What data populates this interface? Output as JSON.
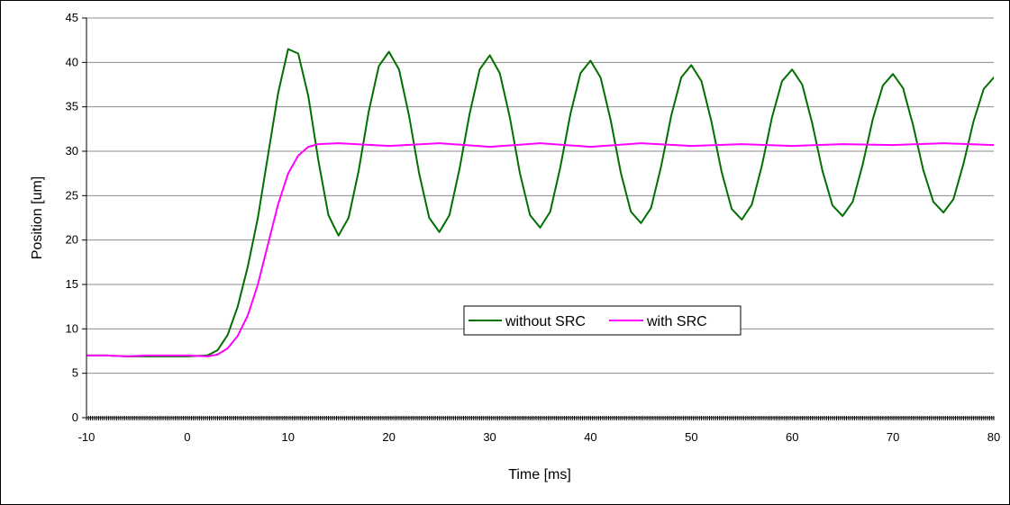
{
  "chart_data": {
    "type": "line",
    "xlabel": "Time [ms]",
    "ylabel": "Position [um]",
    "xlim": [
      -10,
      80
    ],
    "ylim": [
      0,
      45
    ],
    "xticks": [
      -10,
      0,
      10,
      20,
      30,
      40,
      50,
      60,
      70,
      80
    ],
    "yticks": [
      0,
      5,
      10,
      15,
      20,
      25,
      30,
      35,
      40,
      45
    ],
    "grid": "horizontal",
    "legend_position": "center-right",
    "series": [
      {
        "name": "without SRC",
        "color": "#007000",
        "points": [
          [
            -10,
            7.0
          ],
          [
            -8,
            7.0
          ],
          [
            -6,
            6.9
          ],
          [
            -4,
            6.9
          ],
          [
            -2,
            6.9
          ],
          [
            0,
            6.9
          ],
          [
            2,
            7.0
          ],
          [
            3,
            7.6
          ],
          [
            4,
            9.3
          ],
          [
            5,
            12.5
          ],
          [
            6,
            17.0
          ],
          [
            7,
            22.5
          ],
          [
            8,
            29.5
          ],
          [
            9,
            36.5
          ],
          [
            10,
            41.5
          ],
          [
            11,
            41.0
          ],
          [
            12,
            36.2
          ],
          [
            13,
            29.0
          ],
          [
            14,
            22.8
          ],
          [
            15,
            20.5
          ],
          [
            16,
            22.5
          ],
          [
            17,
            27.8
          ],
          [
            18,
            34.5
          ],
          [
            19,
            39.6
          ],
          [
            20,
            41.2
          ],
          [
            21,
            39.2
          ],
          [
            22,
            34.0
          ],
          [
            23,
            27.5
          ],
          [
            24,
            22.5
          ],
          [
            25,
            20.9
          ],
          [
            26,
            22.8
          ],
          [
            27,
            28.0
          ],
          [
            28,
            34.2
          ],
          [
            29,
            39.2
          ],
          [
            30,
            40.8
          ],
          [
            31,
            38.8
          ],
          [
            32,
            33.8
          ],
          [
            33,
            27.5
          ],
          [
            34,
            22.8
          ],
          [
            35,
            21.4
          ],
          [
            36,
            23.2
          ],
          [
            37,
            28.2
          ],
          [
            38,
            34.2
          ],
          [
            39,
            38.8
          ],
          [
            40,
            40.2
          ],
          [
            41,
            38.3
          ],
          [
            42,
            33.5
          ],
          [
            43,
            27.6
          ],
          [
            44,
            23.2
          ],
          [
            45,
            21.9
          ],
          [
            46,
            23.6
          ],
          [
            47,
            28.3
          ],
          [
            48,
            34.0
          ],
          [
            49,
            38.3
          ],
          [
            50,
            39.7
          ],
          [
            51,
            37.9
          ],
          [
            52,
            33.3
          ],
          [
            53,
            27.7
          ],
          [
            54,
            23.5
          ],
          [
            55,
            22.3
          ],
          [
            56,
            24.0
          ],
          [
            57,
            28.4
          ],
          [
            58,
            33.8
          ],
          [
            59,
            37.9
          ],
          [
            60,
            39.2
          ],
          [
            61,
            37.5
          ],
          [
            62,
            33.1
          ],
          [
            63,
            27.8
          ],
          [
            64,
            23.9
          ],
          [
            65,
            22.7
          ],
          [
            66,
            24.3
          ],
          [
            67,
            28.5
          ],
          [
            68,
            33.6
          ],
          [
            69,
            37.4
          ],
          [
            70,
            38.7
          ],
          [
            71,
            37.1
          ],
          [
            72,
            32.9
          ],
          [
            73,
            27.9
          ],
          [
            74,
            24.3
          ],
          [
            75,
            23.1
          ],
          [
            76,
            24.6
          ],
          [
            77,
            28.6
          ],
          [
            78,
            33.4
          ],
          [
            79,
            37.0
          ],
          [
            80,
            38.3
          ],
          [
            81,
            37.1
          ]
        ]
      },
      {
        "name": "with SRC",
        "color": "#ff00ff",
        "points": [
          [
            -10,
            7.0
          ],
          [
            -8,
            7.0
          ],
          [
            -6,
            6.9
          ],
          [
            -4,
            7.0
          ],
          [
            -2,
            7.0
          ],
          [
            0,
            7.0
          ],
          [
            2,
            6.9
          ],
          [
            3,
            7.1
          ],
          [
            4,
            7.8
          ],
          [
            5,
            9.2
          ],
          [
            6,
            11.5
          ],
          [
            7,
            15.0
          ],
          [
            8,
            19.5
          ],
          [
            9,
            24.0
          ],
          [
            10,
            27.5
          ],
          [
            11,
            29.5
          ],
          [
            12,
            30.5
          ],
          [
            13,
            30.8
          ],
          [
            15,
            30.9
          ],
          [
            20,
            30.6
          ],
          [
            25,
            30.9
          ],
          [
            30,
            30.5
          ],
          [
            35,
            30.9
          ],
          [
            40,
            30.5
          ],
          [
            45,
            30.9
          ],
          [
            50,
            30.6
          ],
          [
            55,
            30.8
          ],
          [
            60,
            30.6
          ],
          [
            65,
            30.8
          ],
          [
            70,
            30.7
          ],
          [
            75,
            30.9
          ],
          [
            80,
            30.7
          ],
          [
            81,
            30.6
          ]
        ]
      }
    ]
  }
}
